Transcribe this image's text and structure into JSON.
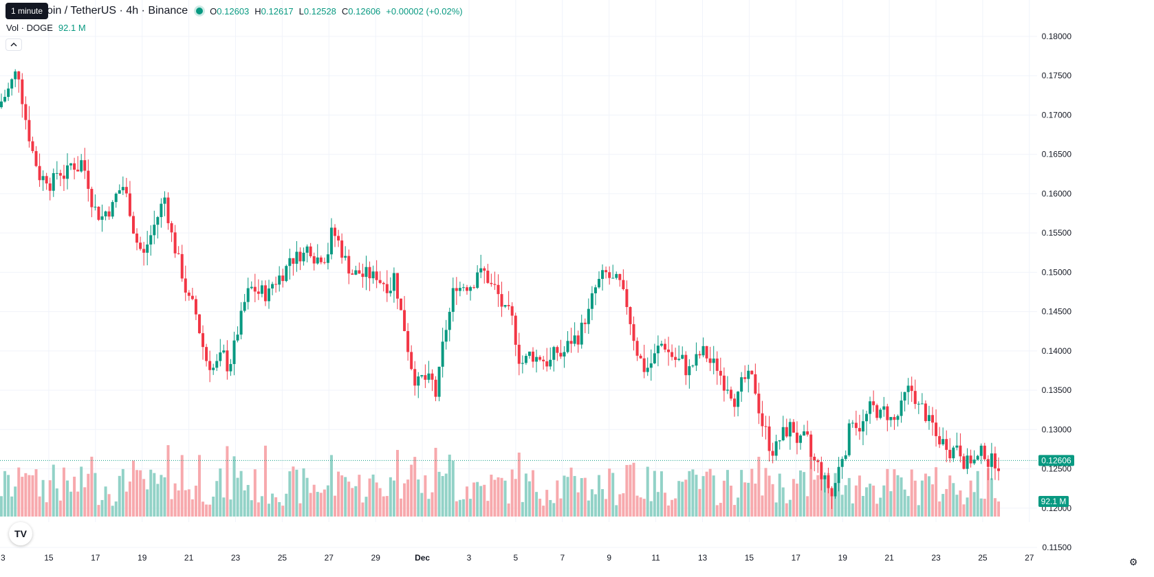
{
  "legend": {
    "title": "oin / TetherUS · 4h · Binance",
    "open_label": "O",
    "open": "0.12603",
    "high_label": "H",
    "high": "0.12617",
    "low_label": "L",
    "low": "0.12528",
    "close_label": "C",
    "close": "0.12606",
    "change": "+0.00002 (+0.02%)"
  },
  "volume_legend": {
    "label": "Vol · DOGE",
    "value": "92.1 M"
  },
  "tooltip": "1 minute",
  "collapse_icon": "chevron-up-icon",
  "logo": "TV",
  "colors": {
    "up": "#089981",
    "down": "#f23645",
    "up_vol": "#92d2c7",
    "down_vol": "#f7a9ad",
    "grid": "#f0f3fa",
    "text": "#131722"
  },
  "chart_data": {
    "type": "candlestick",
    "symbol": "DOGE / TetherUS",
    "interval": "4h",
    "ylim": [
      0.1145,
      0.1805
    ],
    "y_ticks": [
      "0.18000",
      "0.17500",
      "0.17000",
      "0.16500",
      "0.16000",
      "0.15500",
      "0.15000",
      "0.14500",
      "0.14000",
      "0.13500",
      "0.13000",
      "0.12500",
      "0.12000",
      "0.11500"
    ],
    "x_ticks": [
      "3",
      "15",
      "17",
      "19",
      "21",
      "23",
      "25",
      "27",
      "29",
      "Dec",
      "3",
      "5",
      "7",
      "9",
      "11",
      "13",
      "15",
      "17",
      "19",
      "21",
      "23",
      "25",
      "27"
    ],
    "last_price": "0.12606",
    "last_volume": "92.1 M",
    "daily_closes": [
      0.1755,
      0.1625,
      0.163,
      0.164,
      0.157,
      0.161,
      0.152,
      0.1595,
      0.148,
      0.139,
      0.1385,
      0.147,
      0.147,
      0.152,
      0.1535,
      0.1545,
      0.15,
      0.149,
      0.1495,
      0.137,
      0.1345,
      0.149,
      0.1505,
      0.147,
      0.1395,
      0.1395,
      0.1395,
      0.1425,
      0.149,
      0.1465,
      0.138,
      0.141,
      0.138,
      0.1395,
      0.136,
      0.136,
      0.1285,
      0.13,
      0.1265,
      0.1215,
      0.132,
      0.1325,
      0.131,
      0.1345,
      0.129,
      0.1285,
      0.126,
      0.126
    ]
  }
}
